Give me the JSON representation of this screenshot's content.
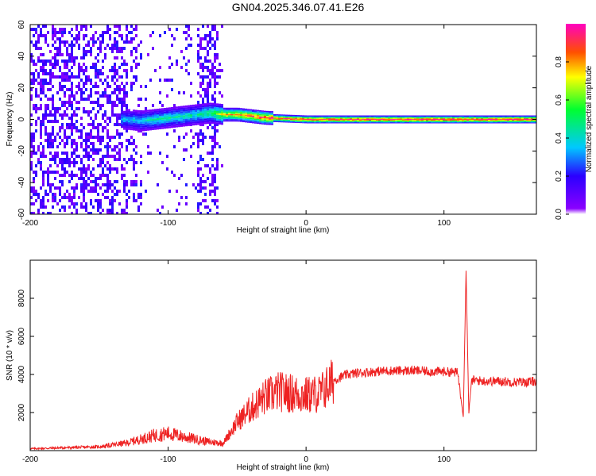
{
  "title": "GN04.2025.346.07.41.E26",
  "colors": {
    "snr_line": "#ee2222",
    "plot_bg": "#ffffff",
    "axis": "#000000"
  },
  "chart_data": [
    {
      "type": "heatmap",
      "title": "GN04.2025.346.07.41.E26",
      "xlabel": "Height of straight line (km)",
      "ylabel": "Frequency (Hz)",
      "xlim": [
        -200,
        167
      ],
      "ylim": [
        -60,
        60
      ],
      "xticks": [
        -200,
        -100,
        0,
        100
      ],
      "yticks": [
        -60,
        -40,
        -20,
        0,
        20,
        40,
        60
      ],
      "colorbar": {
        "label": "Normalized spectral amplitude",
        "range": [
          0.0,
          1.0
        ],
        "ticks": [
          0.0,
          0.2,
          0.4,
          0.6,
          0.8
        ],
        "tick_labels": [
          "0.0",
          "0.2",
          "0.4",
          "0.6",
          "0.8"
        ]
      },
      "ridge": [
        {
          "x": -130,
          "y": 0,
          "amp": 0.35
        },
        {
          "x": -120,
          "y": -1,
          "amp": 0.4
        },
        {
          "x": -110,
          "y": 0,
          "amp": 0.45
        },
        {
          "x": -100,
          "y": 1,
          "amp": 0.45
        },
        {
          "x": -90,
          "y": 2,
          "amp": 0.45
        },
        {
          "x": -80,
          "y": 3,
          "amp": 0.45
        },
        {
          "x": -70,
          "y": 4,
          "amp": 0.5
        },
        {
          "x": -60,
          "y": 3,
          "amp": 0.75
        },
        {
          "x": -50,
          "y": 3,
          "amp": 0.8
        },
        {
          "x": -40,
          "y": 2,
          "amp": 0.85
        },
        {
          "x": -30,
          "y": 1,
          "amp": 0.9
        },
        {
          "x": 0,
          "y": 0,
          "amp": 0.92
        },
        {
          "x": 50,
          "y": 0,
          "amp": 0.95
        },
        {
          "x": 100,
          "y": 0,
          "amp": 0.95
        },
        {
          "x": 150,
          "y": 0,
          "amp": 0.97
        }
      ],
      "grid": false
    },
    {
      "type": "line",
      "xlabel": "Height of straight line (km)",
      "ylabel": "SNR (10 * v/v)",
      "xlim": [
        -200,
        167
      ],
      "ylim": [
        0,
        10000
      ],
      "xticks": [
        -200,
        -100,
        0,
        100
      ],
      "yticks": [
        2000,
        4000,
        6000,
        8000
      ],
      "x": [
        -200,
        -150,
        -130,
        -110,
        -100,
        -90,
        -80,
        -70,
        -60,
        -50,
        -40,
        -30,
        -20,
        -10,
        0,
        10,
        20,
        30,
        40,
        50,
        60,
        70,
        80,
        90,
        100,
        110,
        114,
        116,
        118,
        120,
        130,
        140,
        150,
        160,
        167
      ],
      "values": [
        100,
        200,
        400,
        800,
        900,
        750,
        600,
        450,
        400,
        1500,
        2200,
        2800,
        3100,
        3000,
        2900,
        3000,
        3700,
        4000,
        4100,
        4150,
        4200,
        4200,
        4200,
        4150,
        4150,
        4100,
        1800,
        9500,
        2000,
        3700,
        3650,
        3650,
        3600,
        3600,
        3650
      ],
      "grid": false
    }
  ]
}
